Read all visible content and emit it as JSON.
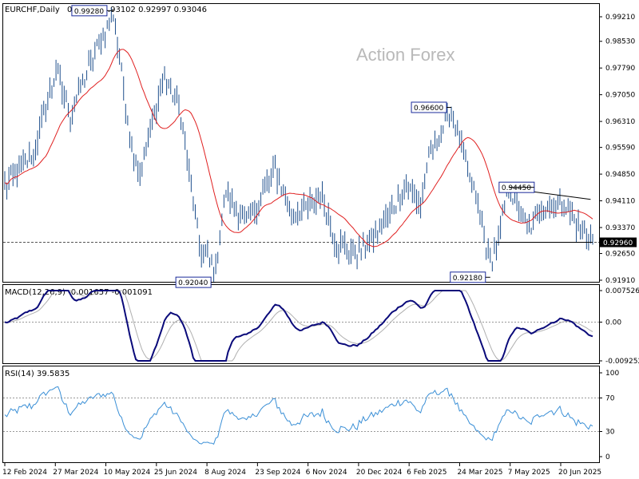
{
  "header": {
    "symbol_title": "EURCHF,Daily",
    "ohlc": "0.93059 0.93102 0.92997 0.93046"
  },
  "watermark": "Action Forex",
  "colors": {
    "bars": "#1e4f8c",
    "ma": "#e02020",
    "macd_main": "#0a0a7a",
    "macd_signal": "#b0b0b0",
    "rsi": "#3a8fd6",
    "level_line": "#000000",
    "current_price_box": "#000000"
  },
  "chart_data": [
    {
      "type": "ohlc",
      "name": "price",
      "x_dates": [
        "12 Feb 2024",
        "27 Mar 2024",
        "10 May 2024",
        "25 Jun 2024",
        "8 Aug 2024",
        "23 Sep 2024",
        "6 Nov 2024",
        "20 Dec 2024",
        "6 Feb 2025",
        "24 Mar 2025",
        "7 May 2025",
        "20 Jun 2025"
      ],
      "y_ticks": [
        "0.99210",
        "0.98530",
        "0.97790",
        "0.97050",
        "0.96310",
        "0.95590",
        "0.94850",
        "0.94110",
        "0.93370",
        "0.92650",
        "0.91910"
      ],
      "ylim": [
        0.9191,
        0.9921
      ],
      "current_price": 0.9296,
      "current_price_label": "0.92960",
      "path_anchors": [
        {
          "i": 0,
          "v": 0.9455
        },
        {
          "i": 14,
          "v": 0.954
        },
        {
          "i": 25,
          "v": 0.977
        },
        {
          "i": 32,
          "v": 0.965
        },
        {
          "i": 46,
          "v": 0.985
        },
        {
          "i": 53,
          "v": 0.9928
        },
        {
          "i": 62,
          "v": 0.956
        },
        {
          "i": 66,
          "v": 0.949
        },
        {
          "i": 78,
          "v": 0.976
        },
        {
          "i": 86,
          "v": 0.965
        },
        {
          "i": 95,
          "v": 0.928
        },
        {
          "i": 103,
          "v": 0.922
        },
        {
          "i": 108,
          "v": 0.944
        },
        {
          "i": 118,
          "v": 0.9345
        },
        {
          "i": 132,
          "v": 0.95
        },
        {
          "i": 140,
          "v": 0.937
        },
        {
          "i": 155,
          "v": 0.942
        },
        {
          "i": 162,
          "v": 0.929
        },
        {
          "i": 172,
          "v": 0.9265
        },
        {
          "i": 182,
          "v": 0.932
        },
        {
          "i": 196,
          "v": 0.945
        },
        {
          "i": 203,
          "v": 0.94
        },
        {
          "i": 208,
          "v": 0.955
        },
        {
          "i": 218,
          "v": 0.966
        },
        {
          "i": 230,
          "v": 0.942
        },
        {
          "i": 237,
          "v": 0.924
        },
        {
          "i": 241,
          "v": 0.93
        },
        {
          "i": 246,
          "v": 0.9445
        },
        {
          "i": 256,
          "v": 0.933
        },
        {
          "i": 262,
          "v": 0.939
        },
        {
          "i": 272,
          "v": 0.941
        },
        {
          "i": 280,
          "v": 0.934
        },
        {
          "i": 287,
          "v": 0.93
        }
      ],
      "callouts": [
        {
          "label": "0.99280",
          "value": 0.9928
        },
        {
          "label": "0.96600",
          "value": 0.966
        },
        {
          "label": "0.94450",
          "value": 0.9445
        },
        {
          "label": "0.92040",
          "value": 0.9204
        },
        {
          "label": "0.92180",
          "value": 0.9218
        }
      ]
    },
    {
      "type": "line",
      "name": "macd",
      "title": "MACD(12,26,9) -0.001657 -0.001091",
      "y_ticks": [
        "0.007526",
        "0.00",
        "-0.009252"
      ],
      "ylim": [
        -0.009252,
        0.007526
      ]
    },
    {
      "type": "line",
      "name": "rsi",
      "title": "RSI(14) 39.5835",
      "y_ticks": [
        "100",
        "70",
        "30",
        "0"
      ],
      "ylim": [
        0,
        100
      ],
      "levels": [
        70,
        30
      ]
    }
  ]
}
